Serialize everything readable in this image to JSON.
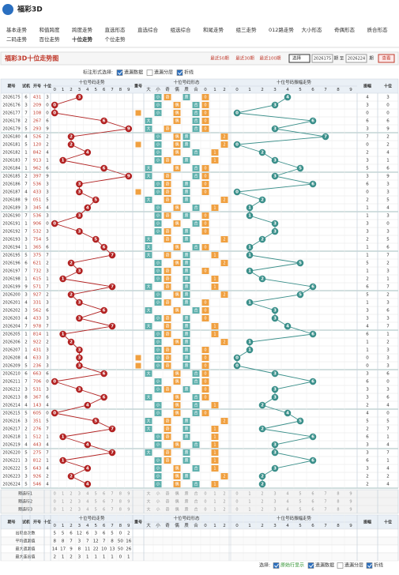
{
  "logo": "福彩3D",
  "nav": [
    "基本走势",
    "和值跨度",
    "跨度走势",
    "直选形态",
    "直选综合",
    "组选综合",
    "和尾走势",
    "组三走势",
    "012路走势",
    "大小形态",
    "奇偶形态",
    "质合形态"
  ],
  "nav2": [
    "二码走势",
    "百位走势",
    "十位走势",
    "个位走势"
  ],
  "nav2_active": 2,
  "title": "福彩3D十位走势图",
  "quick": [
    "最近50期",
    "最近30期",
    "最近100期"
  ],
  "select": "选择",
  "from": "2026175",
  "to_label": "期 至",
  "to": "2026224",
  "period_suffix": "期",
  "view": "查看",
  "options_label": "标注形式选择:",
  "options": [
    {
      "label": "遗漏数据",
      "checked": true
    },
    {
      "label": "遗漏分层",
      "checked": false
    },
    {
      "label": "折线",
      "checked": true
    }
  ],
  "table": {
    "headers": {
      "period": "期号",
      "trial": "试机",
      "open": "开号",
      "tens": "十位",
      "trend": "十位号码走势",
      "repeat": "重号",
      "form": "十位号码形态",
      "amp_trend": "十位号码振幅走势",
      "amp": "振幅",
      "tens_right": "十位"
    },
    "digits": [
      0,
      1,
      2,
      3,
      4,
      5,
      6,
      7,
      8,
      9
    ],
    "form_labels": [
      "大",
      "小",
      "奇",
      "偶",
      "质",
      "合",
      "0",
      "1",
      "2"
    ],
    "rows": [
      {
        "period": "2026175",
        "trial": 6,
        "open": "431",
        "tens": 3,
        "amplitude": 4
      },
      {
        "period": "2026176",
        "trial": 3,
        "open": "209",
        "tens": 0,
        "amplitude": 3
      },
      {
        "period": "2026177",
        "trial": 7,
        "open": "108",
        "tens": 0,
        "amplitude": 0
      },
      {
        "period": "2026178",
        "trial": 2,
        "open": "267",
        "tens": 6,
        "amplitude": 6
      },
      {
        "period": "2026179",
        "trial": 5,
        "open": "293",
        "tens": 9,
        "amplitude": 3
      },
      {
        "period": "2026180",
        "trial": 4,
        "open": "526",
        "tens": 2,
        "amplitude": 7
      },
      {
        "period": "2026181",
        "trial": 5,
        "open": "120",
        "tens": 2,
        "amplitude": 0
      },
      {
        "period": "2026182",
        "trial": 1,
        "open": "842",
        "tens": 4,
        "amplitude": 2
      },
      {
        "period": "2026183",
        "trial": 7,
        "open": "913",
        "tens": 1,
        "amplitude": 3
      },
      {
        "period": "2026184",
        "trial": 1,
        "open": "962",
        "tens": 6,
        "amplitude": 5
      },
      {
        "period": "2026185",
        "trial": 2,
        "open": "397",
        "tens": 9,
        "amplitude": 3
      },
      {
        "period": "2026186",
        "trial": 7,
        "open": "536",
        "tens": 3,
        "amplitude": 6
      },
      {
        "period": "2026187",
        "trial": 4,
        "open": "433",
        "tens": 3,
        "amplitude": 0
      },
      {
        "period": "2026188",
        "trial": 9,
        "open": "051",
        "tens": 5,
        "amplitude": 2
      },
      {
        "period": "2026189",
        "trial": 3,
        "open": "345",
        "tens": 4,
        "amplitude": 1
      },
      {
        "period": "2026190",
        "trial": 7,
        "open": "536",
        "tens": 3,
        "amplitude": 1
      },
      {
        "period": "2026191",
        "trial": 1,
        "open": "906",
        "tens": 0,
        "amplitude": 3
      },
      {
        "period": "2026192",
        "trial": 7,
        "open": "532",
        "tens": 3,
        "amplitude": 3
      },
      {
        "period": "2026193",
        "trial": 3,
        "open": "754",
        "tens": 5,
        "amplitude": 2
      },
      {
        "period": "2026194",
        "trial": 1,
        "open": "365",
        "tens": 6,
        "amplitude": 1
      },
      {
        "period": "2026195",
        "trial": 5,
        "open": "375",
        "tens": 7,
        "amplitude": 1
      },
      {
        "period": "2026196",
        "trial": 6,
        "open": "621",
        "tens": 2,
        "amplitude": 5
      },
      {
        "period": "2026197",
        "trial": 7,
        "open": "732",
        "tens": 3,
        "amplitude": 1
      },
      {
        "period": "2026198",
        "trial": 1,
        "open": "615",
        "tens": 1,
        "amplitude": 2
      },
      {
        "period": "2026199",
        "trial": 9,
        "open": "571",
        "tens": 7,
        "amplitude": 6
      },
      {
        "period": "2026200",
        "trial": 3,
        "open": "927",
        "tens": 2,
        "amplitude": 5
      },
      {
        "period": "2026201",
        "trial": 4,
        "open": "331",
        "tens": 3,
        "amplitude": 1
      },
      {
        "period": "2026202",
        "trial": 3,
        "open": "562",
        "tens": 6,
        "amplitude": 3
      },
      {
        "period": "2026203",
        "trial": 4,
        "open": "433",
        "tens": 3,
        "amplitude": 3
      },
      {
        "period": "2026204",
        "trial": 7,
        "open": "978",
        "tens": 7,
        "amplitude": 4
      },
      {
        "period": "2026205",
        "trial": 1,
        "open": "814",
        "tens": 1,
        "amplitude": 6
      },
      {
        "period": "2026206",
        "trial": 2,
        "open": "922",
        "tens": 2,
        "amplitude": 1
      },
      {
        "period": "2026207",
        "trial": 1,
        "open": "431",
        "tens": 3,
        "amplitude": 1
      },
      {
        "period": "2026208",
        "trial": 4,
        "open": "633",
        "tens": 3,
        "amplitude": 0
      },
      {
        "period": "2026209",
        "trial": 5,
        "open": "236",
        "tens": 3,
        "amplitude": 0
      },
      {
        "period": "2026210",
        "trial": 6,
        "open": "663",
        "tens": 6,
        "amplitude": 3
      },
      {
        "period": "2026211",
        "trial": 7,
        "open": "706",
        "tens": 0,
        "amplitude": 6
      },
      {
        "period": "2026212",
        "trial": 3,
        "open": "531",
        "tens": 3,
        "amplitude": 3
      },
      {
        "period": "2026213",
        "trial": 8,
        "open": "367",
        "tens": 6,
        "amplitude": 3
      },
      {
        "period": "2026214",
        "trial": 4,
        "open": "143",
        "tens": 4,
        "amplitude": 2
      },
      {
        "period": "2026215",
        "trial": 5,
        "open": "605",
        "tens": 0,
        "amplitude": 4
      },
      {
        "period": "2026216",
        "trial": 3,
        "open": "351",
        "tens": 5,
        "amplitude": 5
      },
      {
        "period": "2026217",
        "trial": 2,
        "open": "276",
        "tens": 7,
        "amplitude": 2
      },
      {
        "period": "2026218",
        "trial": 1,
        "open": "512",
        "tens": 1,
        "amplitude": 6
      },
      {
        "period": "2026219",
        "trial": 4,
        "open": "443",
        "tens": 4,
        "amplitude": 3
      },
      {
        "period": "2026220",
        "trial": 5,
        "open": "275",
        "tens": 7,
        "amplitude": 3
      },
      {
        "period": "2026221",
        "trial": 3,
        "open": "812",
        "tens": 1,
        "amplitude": 6
      },
      {
        "period": "2026222",
        "trial": 5,
        "open": "643",
        "tens": 4,
        "amplitude": 3
      },
      {
        "period": "2026223",
        "trial": 3,
        "open": "926",
        "tens": 2,
        "amplitude": 2
      },
      {
        "period": "2026224",
        "trial": 5,
        "open": "546",
        "tens": 4,
        "amplitude": 2
      }
    ],
    "preselect": [
      "预选行1",
      "预选行2",
      "预选行3"
    ],
    "stats": [
      {
        "label": "出现总次数",
        "values": [
          5,
          5,
          6,
          12,
          6,
          3,
          6,
          5,
          0,
          2
        ]
      },
      {
        "label": "平均遗漏值",
        "values": [
          8,
          8,
          7,
          3,
          7,
          12,
          7,
          8,
          50,
          16
        ]
      },
      {
        "label": "最大遗漏值",
        "values": [
          14,
          17,
          9,
          8,
          11,
          22,
          10,
          13,
          50,
          26
        ]
      },
      {
        "label": "最大连出值",
        "values": [
          2,
          1,
          2,
          3,
          1,
          1,
          1,
          1,
          0,
          1
        ]
      }
    ]
  },
  "footer": {
    "label": "选择:",
    "options": [
      {
        "label": "原始行显示",
        "checked": true
      },
      {
        "label": "遗漏数据",
        "checked": true
      },
      {
        "label": "遗漏分层",
        "checked": false
      },
      {
        "label": "折线",
        "checked": true
      }
    ]
  }
}
